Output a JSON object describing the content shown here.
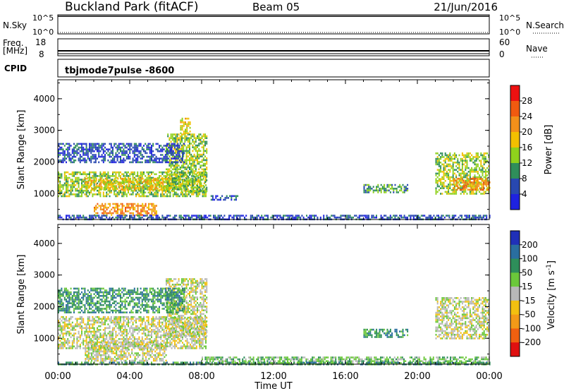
{
  "header": {
    "site": "Buckland Park (fitACF)",
    "beam": "Beam 05",
    "date": "21/Jun/2016"
  },
  "strips": {
    "nsky_label": "N.Sky",
    "nsky_ticks": [
      "10^5",
      "10^0"
    ],
    "nsearch_label": "N.Search",
    "nsearch_ticks": [
      "10^5",
      "10^0"
    ],
    "freq_label": "Freq.",
    "freq_unit": "[MHz]",
    "freq_ticks": [
      "18",
      "8"
    ],
    "nave_label": "Nave",
    "nave_ticks": [
      "60",
      "0"
    ],
    "cpid_label": "CPID",
    "cpid_value": "tbjmode7pulse -8600"
  },
  "colorbars": {
    "power": {
      "label": "Power [dB]",
      "ticks": [
        "28",
        "24",
        "20",
        "16",
        "12",
        "8",
        "4"
      ],
      "colors": [
        "#ee1111",
        "#f05a10",
        "#f2901a",
        "#f2c000",
        "#8fd11c",
        "#2f8e5a",
        "#2848b0",
        "#1e22e0"
      ]
    },
    "velocity": {
      "label": "Velocity [m s",
      "label_sup": "-1",
      "label_end": "]",
      "ticks": [
        "200",
        "100",
        "50",
        "15",
        "-15",
        "-50",
        "-100",
        "-200"
      ],
      "colors": [
        "#2030b8",
        "#2a6ea0",
        "#2e8e5a",
        "#6bc83a",
        "#b8b8b8",
        "#f2c010",
        "#f29a18",
        "#f06010",
        "#e01010"
      ]
    }
  },
  "chart_data": [
    {
      "type": "heatmap",
      "title": "Power",
      "ylabel": "Slant Range [km]",
      "xlabel": "",
      "ylim": [
        180,
        4600
      ],
      "yticks": [
        "1000",
        "2000",
        "3000",
        "4000"
      ],
      "xlim_hours": [
        0,
        24
      ],
      "bands": [
        {
          "t0": 0.0,
          "t1": 8.2,
          "r0": 900,
          "r1": 1700,
          "level": 3
        },
        {
          "t0": 1.5,
          "t1": 6.5,
          "r0": 1100,
          "r1": 1500,
          "level": 4
        },
        {
          "t0": 2.0,
          "t1": 5.5,
          "r0": 300,
          "r1": 700,
          "level": 5
        },
        {
          "t0": 6.0,
          "t1": 8.3,
          "r0": 1100,
          "r1": 2900,
          "level": 3
        },
        {
          "t0": 0.0,
          "t1": 7.0,
          "r0": 2000,
          "r1": 2600,
          "level": 1
        },
        {
          "t0": 6.8,
          "t1": 7.4,
          "r0": 2900,
          "r1": 3400,
          "level": 4
        },
        {
          "t0": 8.5,
          "t1": 10.0,
          "r0": 800,
          "r1": 950,
          "level": 1
        },
        {
          "t0": 17.0,
          "t1": 19.5,
          "r0": 1050,
          "r1": 1300,
          "level": 2
        },
        {
          "t0": 21.0,
          "t1": 24.0,
          "r0": 1000,
          "r1": 2300,
          "level": 3
        },
        {
          "t0": 22.0,
          "t1": 24.0,
          "r0": 1100,
          "r1": 1500,
          "level": 5
        },
        {
          "t0": 0.0,
          "t1": 24.0,
          "r0": 190,
          "r1": 330,
          "level": 1
        }
      ]
    },
    {
      "type": "heatmap",
      "title": "Velocity",
      "ylabel": "Slant Range [km]",
      "xlabel": "Time UT",
      "ylim": [
        180,
        4600
      ],
      "yticks": [
        "1000",
        "2000",
        "3000",
        "4000"
      ],
      "xticks": [
        "00:00",
        "04:00",
        "08:00",
        "12:00",
        "16:00",
        "20:00",
        "00:00"
      ],
      "xlim_hours": [
        0,
        24
      ],
      "bands": [
        {
          "t0": 0.0,
          "t1": 8.2,
          "r0": 700,
          "r1": 1700,
          "level": 4
        },
        {
          "t0": 1.5,
          "t1": 6.0,
          "r0": 300,
          "r1": 900,
          "level": 4
        },
        {
          "t0": 6.0,
          "t1": 8.3,
          "r0": 1100,
          "r1": 2900,
          "level": 4
        },
        {
          "t0": 0.0,
          "t1": 7.0,
          "r0": 1800,
          "r1": 2600,
          "level": 6
        },
        {
          "t0": 17.0,
          "t1": 19.5,
          "r0": 1050,
          "r1": 1300,
          "level": 6
        },
        {
          "t0": 21.0,
          "t1": 24.0,
          "r0": 1000,
          "r1": 2300,
          "level": 4
        },
        {
          "t0": 8.0,
          "t1": 24.0,
          "r0": 190,
          "r1": 420,
          "level": 5
        },
        {
          "t0": 0.0,
          "t1": 24.0,
          "r0": 190,
          "r1": 260,
          "level": 6
        }
      ]
    }
  ]
}
